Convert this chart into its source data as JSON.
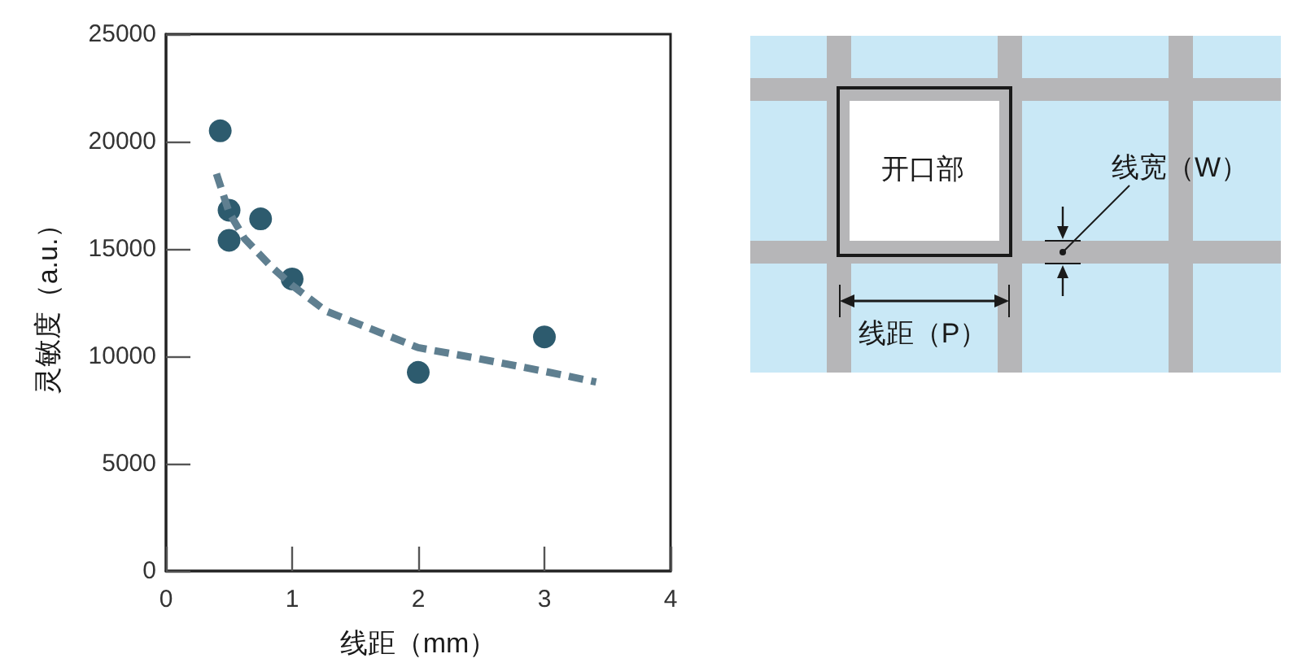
{
  "chart_data": [
    {
      "type": "scatter",
      "xlabel": "线距（mm）",
      "ylabel": "灵敏度（a.u.）",
      "xlim": [
        0,
        4
      ],
      "xticks": [
        0,
        1,
        2,
        3,
        4
      ],
      "ylim": [
        0,
        25000
      ],
      "yticks": [
        0,
        5000,
        10000,
        15000,
        20000,
        25000
      ],
      "marker": "circle",
      "series": [
        {
          "color": "#2d5b6e",
          "x": [
            0.43,
            0.5,
            0.5,
            0.75,
            1.0,
            2.0,
            3.0
          ],
          "values": [
            20500,
            16800,
            15400,
            16400,
            13600,
            9250,
            10900
          ]
        },
        {
          "type": "line",
          "color": "#5f7f90",
          "line_style": "dashed",
          "marker": "none",
          "x": [
            0.4,
            0.5,
            0.62,
            0.83,
            1.0,
            1.27,
            1.7,
            2.0,
            2.47,
            3.0,
            3.41
          ],
          "values": [
            18500,
            16700,
            15500,
            14200,
            13300,
            12100,
            11100,
            10400,
            9900,
            9300,
            8800
          ]
        }
      ]
    },
    {
      "type": "other",
      "annotations": [
        "开口部",
        "线宽（W）",
        "线距（P）"
      ]
    }
  ]
}
